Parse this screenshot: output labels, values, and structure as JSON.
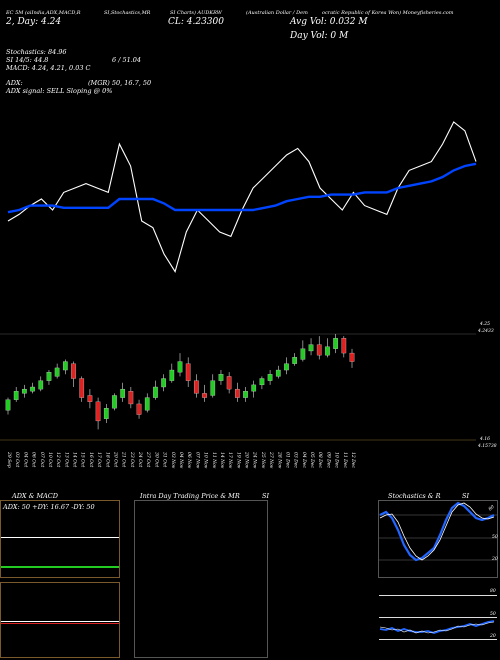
{
  "header": {
    "line1": "EC 5M (aiIndia,ADX,MACD,R",
    "line1b": "SI,Stochastics,MR",
    "line1c": "SI Charts) AUDKRW",
    "line1d": "(Australian Dollar / Dem",
    "line1e": "ocratic Republic of Korea Won) Moneyfisheries.com",
    "close_line": "CL: 4.23300",
    "open_line": "2, Day: 4.24",
    "avg_vol": "Avg Vol: 0.032  M",
    "day_vol": "Day Vol: 0  M"
  },
  "indicators": {
    "stochastics": "Stochastics: 84.96",
    "si": "SI 14/5: 44.8",
    "si_b": "6 / 51.04",
    "macd": "MACD: 4.24, 4.21, 0.03 C",
    "adx": "ADX:",
    "mgr": "(MGR) 50, 16.7, 50",
    "adx_signal": "ADX  signal: SELL  Sloping @ 0%"
  },
  "price_axis": {
    "top1": "4.25",
    "top2": "4.2433",
    "bot1": "4.16",
    "bot2": "4.15738"
  },
  "dates": [
    "29 Sep",
    "03 Oct",
    "04 Oct",
    "06 Oct",
    "07 Oct",
    "10 Oct",
    "12 Oct",
    "13 Oct",
    "14 Oct",
    "15 Oct",
    "16 Oct",
    "17 Oct",
    "18 Oct",
    "20 Oct",
    "21 Oct",
    "23 Oct",
    "24 Oct",
    "27 Oct",
    "30 Oct",
    "31 Oct",
    "03 Nov",
    "04 Nov",
    "06 Nov",
    "07 Nov",
    "10 Nov",
    "11 Nov",
    "14 Nov",
    "17 Nov",
    "19 Nov",
    "20 Nov",
    "24 Nov",
    "25 Nov",
    "27 Nov",
    "28 Nov",
    "01 Dec",
    "03 Dec",
    "04 Dec",
    "05 Dec",
    "08 Dec",
    "09 Dec",
    "10 Dec",
    "11 Dec",
    "12 Dec"
  ],
  "panels": {
    "adx_title": "ADX  & MACD",
    "adx_readout": "ADX: 50  +DY: 16.67  -DY: 50",
    "intraday_title": "Intra  Day Trading Price  & MR",
    "intraday_title_b": "SI",
    "stoch_title": "Stochastics & R",
    "stoch_title_b": "SI",
    "stoch_levels": [
      "80",
      "50",
      "20"
    ],
    "rsi_levels": [
      "80",
      "50",
      "20"
    ]
  },
  "colors": {
    "up": "#22cc22",
    "down": "#dd2222",
    "line_white": "#ffffff",
    "line_blue": "#0044ff",
    "rsi_bg": "#aa0000",
    "stoch_blue": "#2266ff"
  },
  "chart_data": {
    "type": "line",
    "x": [
      "29 Sep",
      "03 Oct",
      "04 Oct",
      "06 Oct",
      "07 Oct",
      "10 Oct",
      "12 Oct",
      "13 Oct",
      "14 Oct",
      "15 Oct",
      "16 Oct",
      "17 Oct",
      "18 Oct",
      "20 Oct",
      "21 Oct",
      "23 Oct",
      "24 Oct",
      "27 Oct",
      "30 Oct",
      "31 Oct",
      "03 Nov",
      "04 Nov",
      "06 Nov",
      "07 Nov",
      "10 Nov",
      "11 Nov",
      "14 Nov",
      "17 Nov",
      "19 Nov",
      "20 Nov",
      "24 Nov",
      "25 Nov",
      "27 Nov",
      "28 Nov",
      "01 Dec",
      "03 Dec",
      "04 Dec",
      "05 Dec",
      "08 Dec",
      "09 Dec",
      "10 Dec",
      "11 Dec",
      "12 Dec"
    ],
    "series": [
      {
        "values": [
          45,
          48,
          52,
          55,
          50,
          58,
          60,
          62,
          60,
          58,
          80,
          70,
          45,
          42,
          30,
          22,
          40,
          50,
          45,
          40,
          38,
          50,
          60,
          65,
          70,
          75,
          78,
          72,
          60,
          55,
          50,
          58,
          52,
          50,
          48,
          60,
          68,
          70,
          72,
          80,
          90,
          86,
          72
        ]
      },
      {
        "values": [
          49,
          50,
          52,
          52,
          52,
          51,
          51,
          51,
          51,
          51,
          55,
          55,
          55,
          55,
          53,
          50,
          50,
          50,
          50,
          50,
          50,
          50,
          50,
          51,
          52,
          54,
          55,
          56,
          56,
          57,
          57,
          57,
          58,
          58,
          58,
          60,
          61,
          62,
          63,
          65,
          68,
          70,
          71
        ]
      }
    ],
    "ylim": [
      0,
      100
    ]
  }
}
